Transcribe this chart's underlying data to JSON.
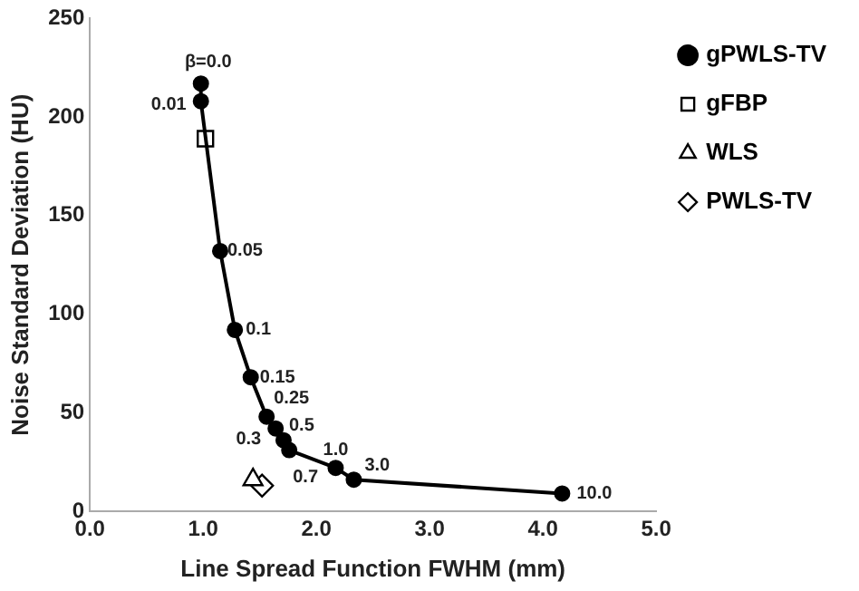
{
  "chart_data": {
    "type": "line",
    "xlabel": "Line Spread Function FWHM (mm)",
    "ylabel": "Noise Standard Deviation (HU)",
    "xlim": [
      0,
      5
    ],
    "xticks": [
      {
        "value": 0,
        "label": "0.0"
      },
      {
        "value": 1,
        "label": "1.0"
      },
      {
        "value": 2,
        "label": "2.0"
      },
      {
        "value": 3,
        "label": "3.0"
      },
      {
        "value": 4,
        "label": "4.0"
      },
      {
        "value": 5,
        "label": "5.0"
      }
    ],
    "ylim": [
      0,
      250
    ],
    "yticks": [
      0,
      50,
      100,
      150,
      200,
      250
    ],
    "grid": false,
    "legend": "right",
    "series": [
      {
        "name": "gPWLS-TV",
        "color": "#000000",
        "marker": "circle",
        "x": [
          0.98,
          0.98,
          1.15,
          1.28,
          1.42,
          1.56,
          1.64,
          1.71,
          1.76,
          2.17,
          2.33,
          4.17
        ],
        "values": [
          217,
          208,
          132,
          92,
          68,
          48,
          42,
          36,
          31,
          22,
          16,
          9
        ]
      },
      {
        "name": "gFBP",
        "type": "scatter",
        "color": "#000000",
        "marker": "square",
        "x": [
          1.02
        ],
        "values": [
          189
        ]
      },
      {
        "name": "WLS",
        "type": "scatter",
        "color": "#000000",
        "marker": "triangle",
        "x": [
          1.44
        ],
        "values": [
          16
        ]
      },
      {
        "name": "PWLS-TV",
        "type": "scatter",
        "color": "#000000",
        "marker": "diamond",
        "x": [
          1.52
        ],
        "values": [
          13
        ]
      }
    ],
    "annotations": [
      {
        "text": "β=0.0",
        "x": 0.98,
        "y": 217
      },
      {
        "text": "0.01",
        "x": 0.98,
        "y": 208
      },
      {
        "text": "0.05",
        "x": 1.15,
        "y": 132
      },
      {
        "text": "0.1",
        "x": 1.28,
        "y": 92
      },
      {
        "text": "0.15",
        "x": 1.42,
        "y": 68
      },
      {
        "text": "0.25",
        "x": 1.56,
        "y": 48
      },
      {
        "text": "0.3",
        "x": 1.64,
        "y": 42
      },
      {
        "text": "0.5",
        "x": 1.71,
        "y": 36
      },
      {
        "text": "0.7",
        "x": 1.76,
        "y": 31
      },
      {
        "text": "1.0",
        "x": 2.17,
        "y": 22
      },
      {
        "text": "3.0",
        "x": 2.33,
        "y": 16
      },
      {
        "text": "10.0",
        "x": 4.17,
        "y": 9
      }
    ]
  }
}
